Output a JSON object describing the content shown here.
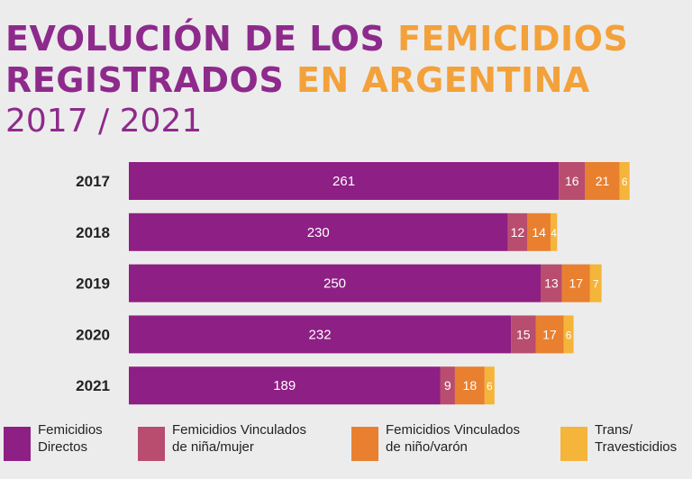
{
  "title": {
    "line1_a": "EVOLUCIÓN DE LOS ",
    "line1_b": "FEMICIDIOS",
    "line2_a": "REGISTRADOS ",
    "line2_b": "EN ARGENTINA",
    "subtitle": "2017 / 2021"
  },
  "colors": {
    "directos": "#8e1f84",
    "vinc_mujer": "#b84d6f",
    "vinc_varon": "#e8802f",
    "trans": "#f5b43a"
  },
  "chart_data": {
    "type": "bar",
    "orientation": "horizontal",
    "stacked": true,
    "categories": [
      "2017",
      "2018",
      "2019",
      "2020",
      "2021"
    ],
    "series": [
      {
        "name": "Femicidios Directos",
        "values": [
          261,
          230,
          250,
          232,
          189
        ]
      },
      {
        "name": "Femicidios Vinculados de niña/mujer",
        "values": [
          16,
          12,
          13,
          15,
          9
        ]
      },
      {
        "name": "Femicidios Vinculados de niño/varón",
        "values": [
          21,
          14,
          17,
          17,
          18
        ]
      },
      {
        "name": "Trans/ Travesticidios",
        "values": [
          6,
          4,
          7,
          6,
          6
        ]
      }
    ],
    "legend_position": "bottom",
    "grid": false
  },
  "legend": [
    {
      "line1": "Femicidios",
      "line2": "Directos"
    },
    {
      "line1": "Femicidios Vinculados",
      "line2": "de niña/mujer"
    },
    {
      "line1": "Femicidios Vinculados",
      "line2": "de niño/varón"
    },
    {
      "line1": "Trans/",
      "line2": "Travesticidios"
    }
  ]
}
